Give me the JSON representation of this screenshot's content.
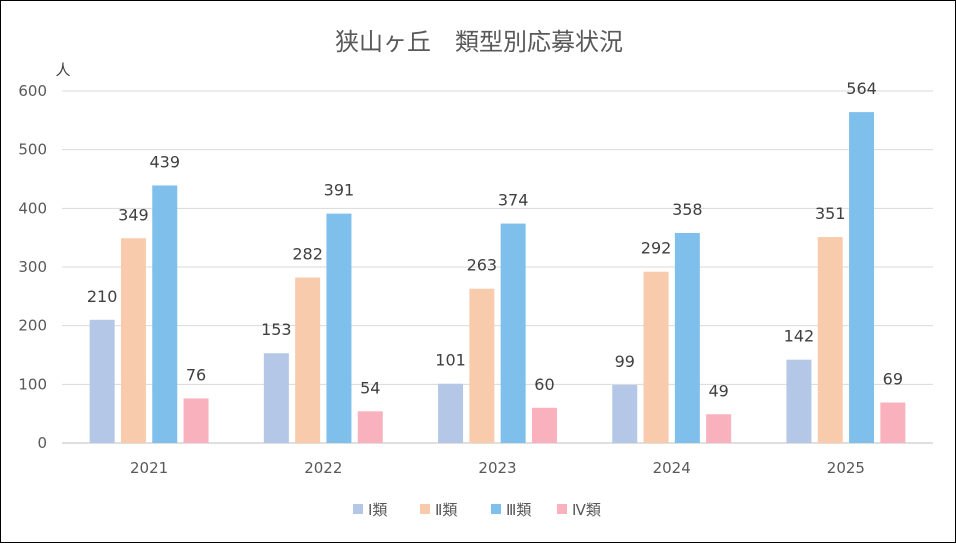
{
  "chart_data": {
    "type": "bar",
    "title": "狭山ヶ丘　類型別応募状況",
    "ylabel": "人",
    "xlabel": "",
    "categories": [
      "2021",
      "2022",
      "2023",
      "2024",
      "2025"
    ],
    "ylim": [
      0,
      600
    ],
    "yticks": [
      0,
      100,
      200,
      300,
      400,
      500,
      600
    ],
    "grid": true,
    "legend_position": "bottom",
    "series": [
      {
        "name": "Ⅰ類",
        "color": "#b4c7e7",
        "values": [
          210,
          153,
          101,
          99,
          142
        ]
      },
      {
        "name": "Ⅱ類",
        "color": "#f8cbad",
        "values": [
          349,
          282,
          263,
          292,
          351
        ]
      },
      {
        "name": "Ⅲ類",
        "color": "#7fbfec",
        "values": [
          439,
          391,
          374,
          358,
          564
        ]
      },
      {
        "name": "Ⅳ類",
        "color": "#f8b1bd",
        "values": [
          76,
          54,
          60,
          49,
          69
        ]
      }
    ]
  }
}
